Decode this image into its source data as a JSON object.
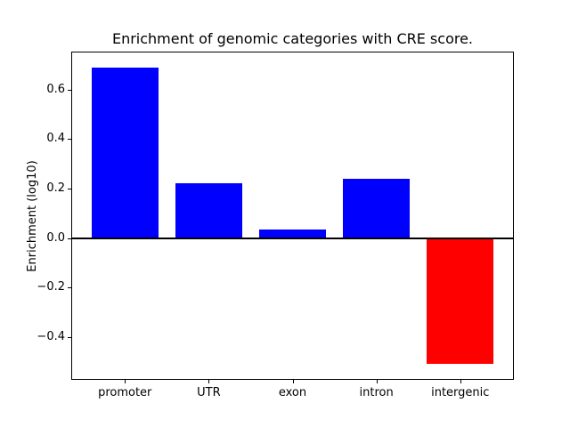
{
  "figure": {
    "background": "#ffffff"
  },
  "chart_data": {
    "type": "bar",
    "title": "Enrichment of genomic categories with CRE score.",
    "xlabel": "",
    "ylabel": "Enrichment (log10)",
    "categories": [
      "promoter",
      "UTR",
      "exon",
      "intron",
      "intergenic"
    ],
    "values": [
      0.69,
      0.22,
      0.035,
      0.24,
      -0.51
    ],
    "bar_colors": [
      "#0000ff",
      "#0000ff",
      "#0000ff",
      "#0000ff",
      "#ff0000"
    ],
    "positive_color": "#0000ff",
    "negative_color": "#ff0000",
    "yticks": [
      0.6,
      0.4,
      0.2,
      0.0,
      -0.2,
      -0.4
    ],
    "ytick_labels": [
      "0.6",
      "0.4",
      "0.2",
      "0.0",
      "−0.2",
      "−0.4"
    ],
    "ylim": [
      -0.573,
      0.754
    ],
    "xlim": [
      -0.64,
      4.64
    ],
    "bar_width": 0.8,
    "zero_line": true,
    "grid": false,
    "legend": "none",
    "frame_color": "#000000",
    "text_color": "#000000"
  }
}
